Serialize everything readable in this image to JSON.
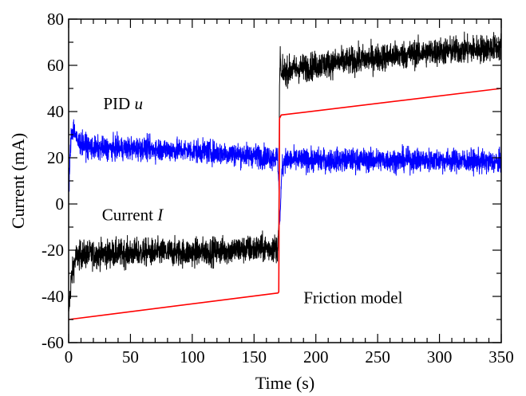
{
  "chart_data": {
    "type": "line",
    "title": "",
    "xlabel": "Time (s)",
    "ylabel": "Current (mA)",
    "xlim": [
      0,
      350
    ],
    "ylim": [
      -60,
      80
    ],
    "x_major_ticks": [
      0,
      50,
      100,
      150,
      200,
      250,
      300,
      350
    ],
    "x_tick_labels": [
      "0",
      "50",
      "100",
      "150",
      "200",
      "250",
      "300",
      "350"
    ],
    "x_minor_step": 10,
    "y_major_ticks": [
      -60,
      -40,
      -20,
      0,
      20,
      40,
      60,
      80
    ],
    "y_tick_labels": [
      "-60",
      "-40",
      "-20",
      "0",
      "20",
      "40",
      "60",
      "80"
    ],
    "y_minor_step": 10,
    "grid": false,
    "legend": "none",
    "annotations": [
      {
        "id": "pid",
        "text": "PID ",
        "italic": "u",
        "x": 28,
        "y": 41
      },
      {
        "id": "current",
        "text": "Current ",
        "italic": "I",
        "x": 27,
        "y": -7
      },
      {
        "id": "friction",
        "text": "Friction model",
        "x": 190,
        "y": -43
      }
    ],
    "series": [
      {
        "key": "current",
        "color": "#000000",
        "noise": 3.0,
        "points": [
          [
            0,
            -47
          ],
          [
            1,
            -40
          ],
          [
            2,
            -33
          ],
          [
            4,
            -27
          ],
          [
            6,
            -23
          ],
          [
            10,
            -22
          ],
          [
            30,
            -21.5
          ],
          [
            60,
            -21
          ],
          [
            100,
            -21
          ],
          [
            130,
            -20
          ],
          [
            150,
            -19.5
          ],
          [
            169,
            -19
          ],
          [
            170,
            -10
          ],
          [
            170.6,
            50
          ],
          [
            171.2,
            66
          ],
          [
            172,
            55
          ],
          [
            174,
            57
          ],
          [
            180,
            58
          ],
          [
            200,
            60
          ],
          [
            230,
            62
          ],
          [
            260,
            64
          ],
          [
            300,
            66
          ],
          [
            330,
            67
          ],
          [
            350,
            68
          ]
        ]
      },
      {
        "key": "pid_u",
        "color": "#0000ff",
        "noise": 2.5,
        "points": [
          [
            0,
            4
          ],
          [
            1,
            18
          ],
          [
            2,
            30
          ],
          [
            4,
            33
          ],
          [
            7,
            27
          ],
          [
            20,
            24
          ],
          [
            60,
            24
          ],
          [
            100,
            23
          ],
          [
            150,
            21
          ],
          [
            169,
            20
          ],
          [
            170,
            10
          ],
          [
            170.6,
            -9
          ],
          [
            171.4,
            -2
          ],
          [
            172.5,
            16
          ],
          [
            175,
            19
          ],
          [
            200,
            19
          ],
          [
            250,
            19
          ],
          [
            300,
            19
          ],
          [
            350,
            18
          ]
        ]
      },
      {
        "key": "friction_model",
        "color": "#ff0000",
        "noise": 0,
        "points": [
          [
            0,
            -50
          ],
          [
            169.5,
            -38.5
          ],
          [
            170,
            -38
          ],
          [
            170.6,
            37
          ],
          [
            172,
            38.5
          ],
          [
            350,
            50
          ]
        ]
      }
    ]
  }
}
